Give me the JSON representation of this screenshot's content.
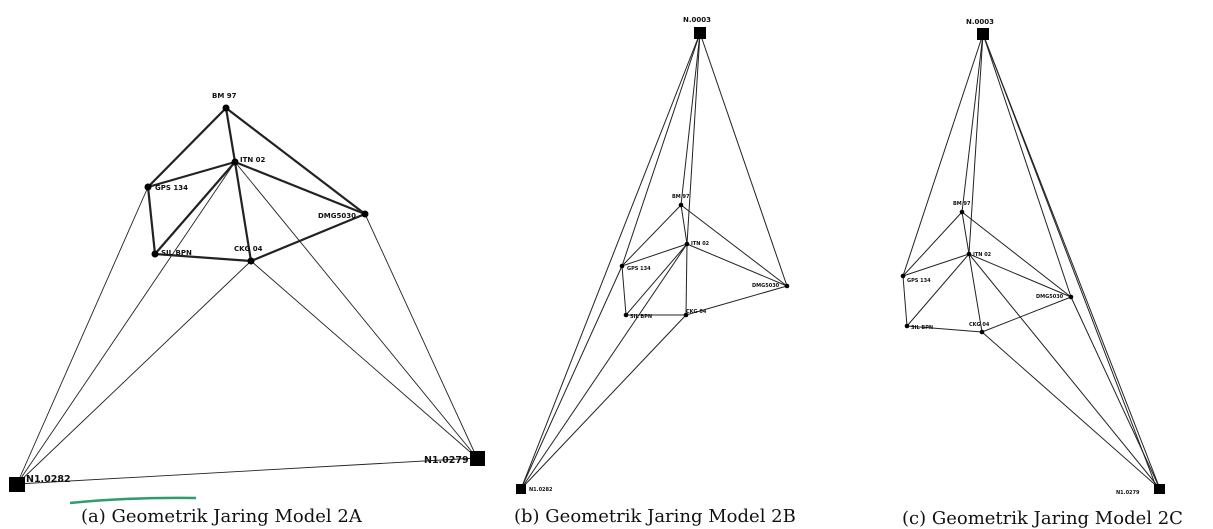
{
  "captions": {
    "a": "(a) Geometrik Jaring Model 2A",
    "b": "(b) Geometrik Jaring Model 2B",
    "c": "(c) Geometrik Jaring Model 2C"
  },
  "labels": {
    "a": {
      "BM97": "BM 97",
      "ITN02": "ITN 02",
      "GPS134": "GPS 134",
      "DMG": "DMG5030",
      "SIL": "SIL BPN",
      "CKG": "CKG 04",
      "N282": "N1.0282",
      "N279": "N1.0279"
    },
    "b": {
      "N3": "N.0003",
      "BM97": "BM 97",
      "ITN02": "ITN 02",
      "GPS134": "GPS 134",
      "DMG": "DMG5030",
      "SIL": "SIL BPN",
      "CKG": "CKG 04",
      "N282": "N1.0282"
    },
    "c": {
      "N3": "N.0003",
      "BM97": "BM 97",
      "ITN02": "ITN 02",
      "GPS134": "GPS 134",
      "DMG": "DMG5030",
      "SIL": "SIL BPN",
      "CKG": "CKG 04",
      "N279": "N1.0279"
    }
  },
  "colors": {
    "line": "#222222",
    "node": "#000000",
    "accent_underline": "#2e9e6b"
  }
}
